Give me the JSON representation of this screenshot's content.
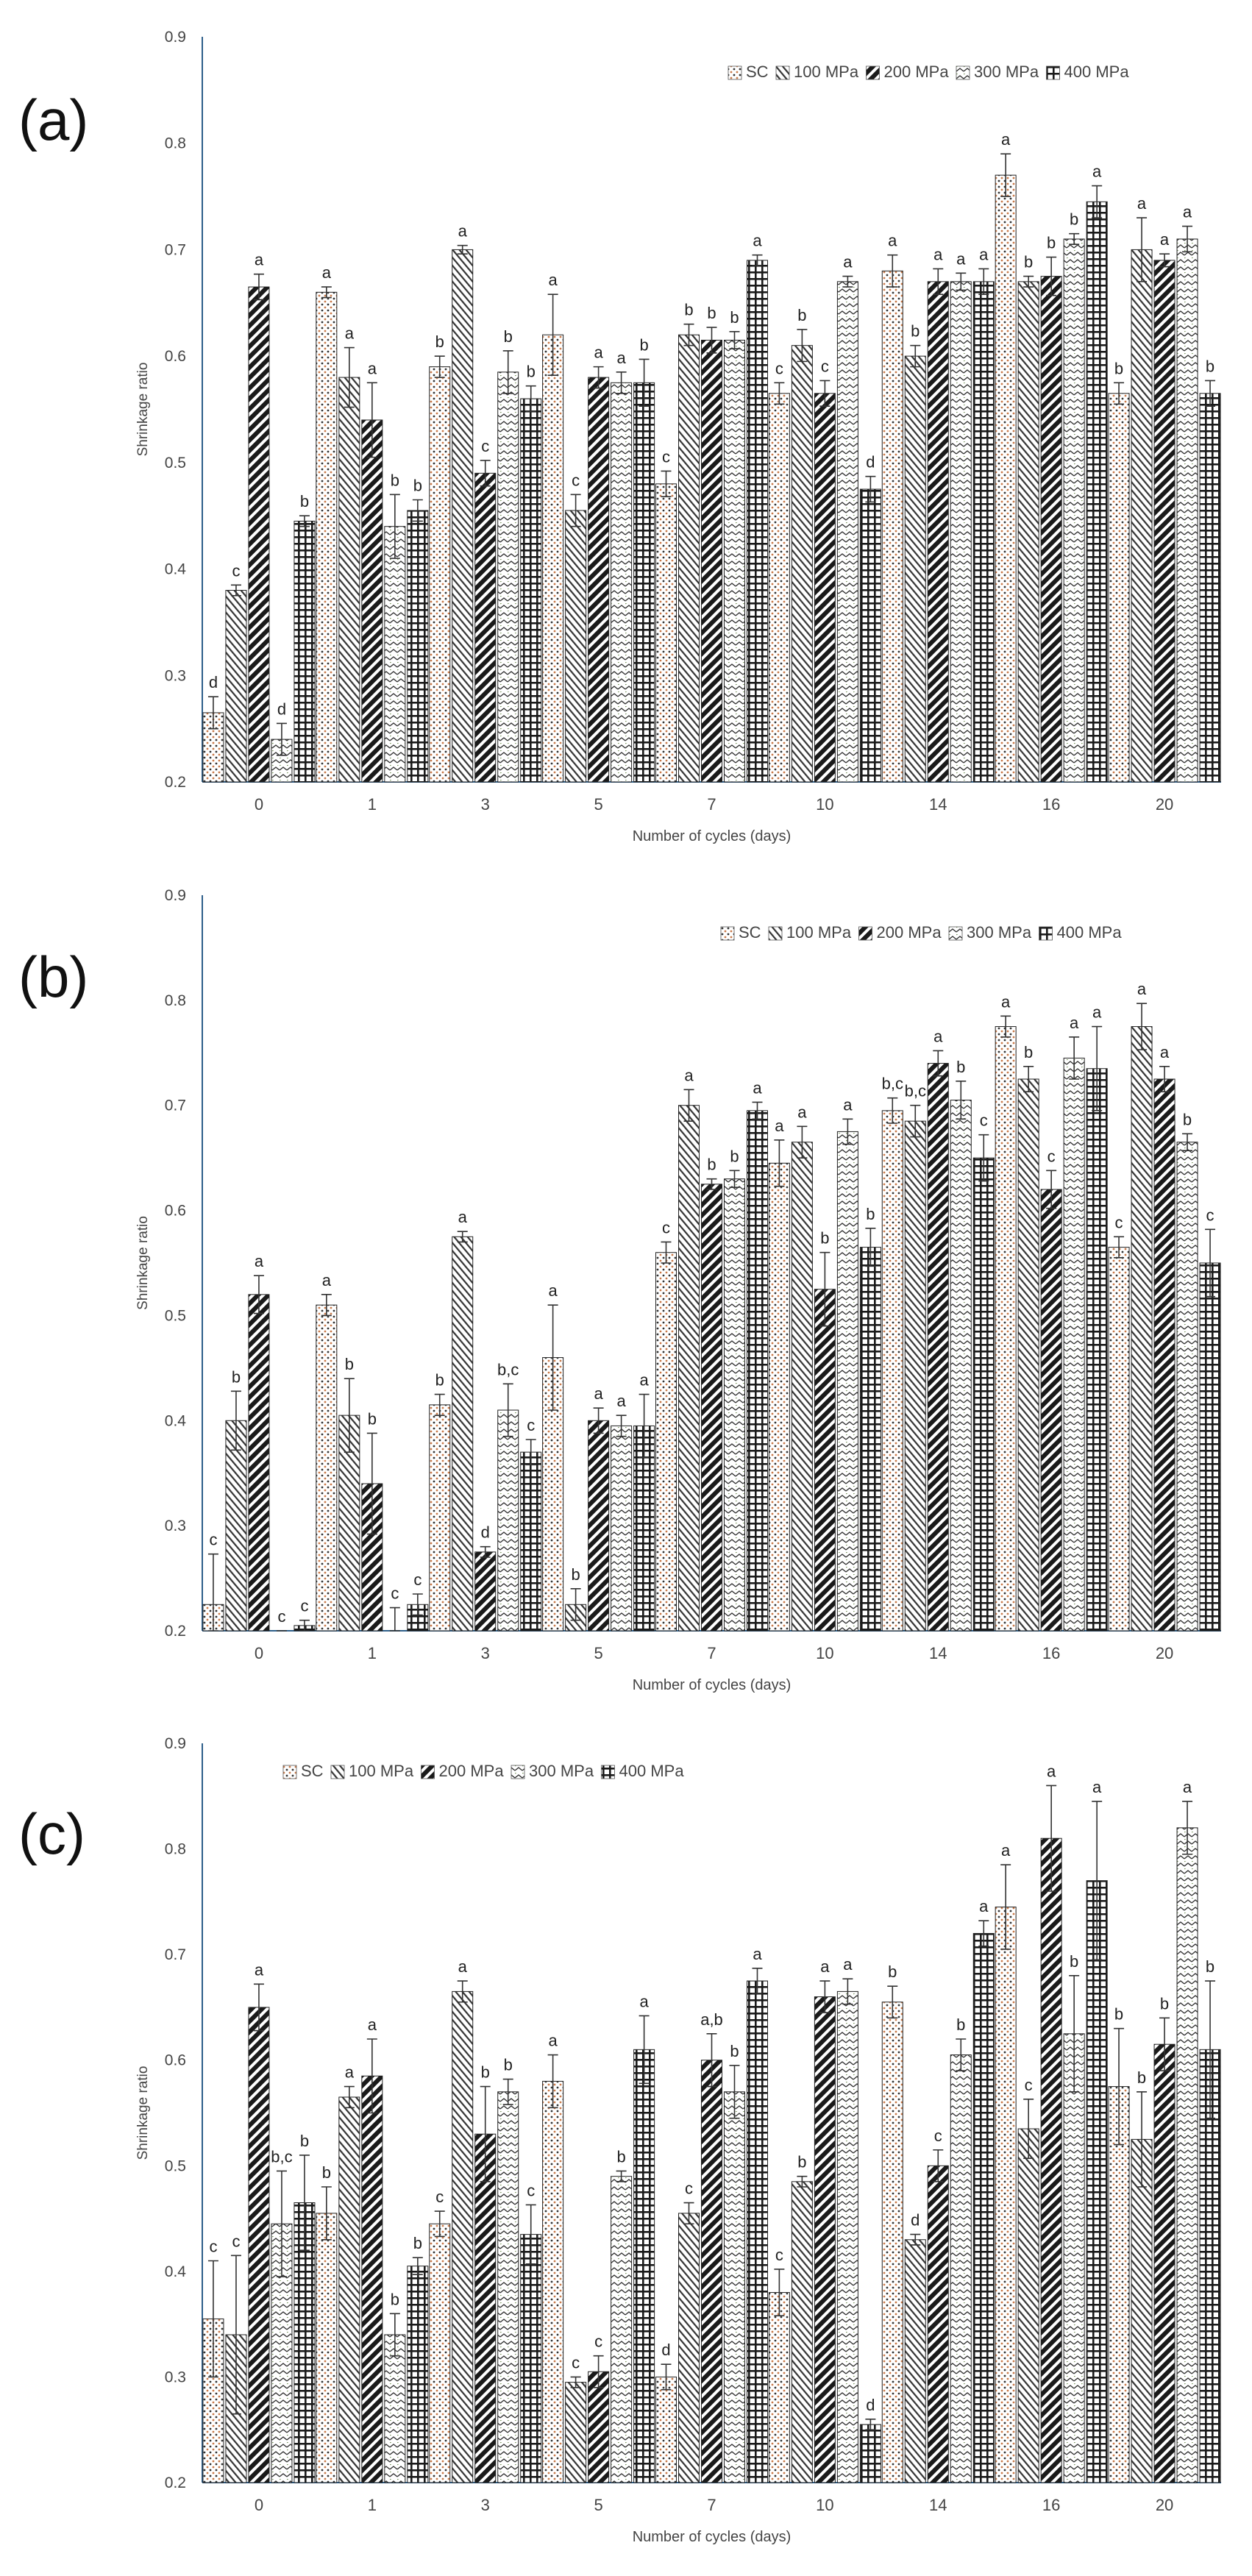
{
  "colors": {
    "axis": "#2e5f8a",
    "bar_edge": "#222222",
    "sc": "#c87a4a",
    "dark": "#1a1a1a",
    "label": "#444444"
  },
  "chart_data": [
    {
      "type": "bar",
      "panel_label": "(a)",
      "xlabel": "Number of cycles (days)",
      "ylabel": "Shrinkage ratio",
      "ylim": [
        0.2,
        0.9
      ],
      "yticks": [
        "0.2",
        "0.3",
        "0.4",
        "0.5",
        "0.6",
        "0.7",
        "0.8",
        "0.9"
      ],
      "categories": [
        "0",
        "1",
        "3",
        "5",
        "7",
        "10",
        "14",
        "16",
        "20"
      ],
      "legend_position": "top-right",
      "series": [
        {
          "name": "SC",
          "pattern": "dots",
          "values": [
            0.265,
            0.66,
            0.59,
            0.62,
            0.48,
            0.565,
            0.68,
            0.77,
            0.565
          ],
          "errors": [
            0.015,
            0.005,
            0.01,
            0.038,
            0.012,
            0.01,
            0.015,
            0.02,
            0.01
          ],
          "letters": [
            "d",
            "a",
            "b",
            "a",
            "c",
            "c",
            "a",
            "a",
            "b"
          ]
        },
        {
          "name": "100 MPa",
          "pattern": "diag",
          "values": [
            0.38,
            0.58,
            0.7,
            0.455,
            0.62,
            0.61,
            0.6,
            0.67,
            0.7
          ],
          "errors": [
            0.005,
            0.028,
            0.004,
            0.015,
            0.01,
            0.015,
            0.01,
            0.005,
            0.03
          ],
          "letters": [
            "c",
            "a",
            "a",
            "c",
            "b",
            "b",
            "b",
            "b",
            "a"
          ]
        },
        {
          "name": "200 MPa",
          "pattern": "heavy",
          "values": [
            0.665,
            0.54,
            0.49,
            0.58,
            0.615,
            0.565,
            0.67,
            0.675,
            0.69
          ],
          "errors": [
            0.012,
            0.035,
            0.012,
            0.01,
            0.012,
            0.012,
            0.012,
            0.018,
            0.006
          ],
          "letters": [
            "a",
            "a",
            "c",
            "a",
            "b",
            "c",
            "a",
            "b",
            "a"
          ]
        },
        {
          "name": "300 MPa",
          "pattern": "wave",
          "values": [
            0.24,
            0.44,
            0.585,
            0.575,
            0.615,
            0.67,
            0.67,
            0.71,
            0.71
          ],
          "errors": [
            0.015,
            0.03,
            0.02,
            0.01,
            0.008,
            0.005,
            0.008,
            0.005,
            0.012
          ],
          "letters": [
            "d",
            "b",
            "b",
            "a",
            "b",
            "a",
            "a",
            "b",
            "a"
          ]
        },
        {
          "name": "400 MPa",
          "pattern": "grid",
          "values": [
            0.445,
            0.455,
            0.56,
            0.575,
            0.69,
            0.475,
            0.67,
            0.745,
            0.565
          ],
          "errors": [
            0.005,
            0.01,
            0.012,
            0.022,
            0.005,
            0.012,
            0.012,
            0.015,
            0.012
          ],
          "letters": [
            "b",
            "b",
            "b",
            "b",
            "a",
            "d",
            "a",
            "a",
            "b"
          ]
        }
      ]
    },
    {
      "type": "bar",
      "panel_label": "(b)",
      "xlabel": "Number of cycles (days)",
      "ylabel": "Shrinkage ratio",
      "ylim": [
        0.2,
        0.9
      ],
      "yticks": [
        "0.2",
        "0.3",
        "0.4",
        "0.5",
        "0.6",
        "0.7",
        "0.8",
        "0.9"
      ],
      "categories": [
        "0",
        "1",
        "3",
        "5",
        "7",
        "10",
        "14",
        "16",
        "20"
      ],
      "legend_position": "top-right",
      "series": [
        {
          "name": "SC",
          "pattern": "dots",
          "values": [
            0.225,
            0.51,
            0.415,
            0.46,
            0.56,
            0.645,
            0.695,
            0.775,
            0.565
          ],
          "errors": [
            0.048,
            0.01,
            0.01,
            0.05,
            0.01,
            0.022,
            0.012,
            0.01,
            0.01
          ],
          "letters": [
            "c",
            "a",
            "b",
            "a",
            "c",
            "a",
            "b,c",
            "a",
            "c"
          ]
        },
        {
          "name": "100 MPa",
          "pattern": "diag",
          "values": [
            0.4,
            0.405,
            0.575,
            0.225,
            0.7,
            0.665,
            0.685,
            0.725,
            0.775
          ],
          "errors": [
            0.028,
            0.035,
            0.005,
            0.015,
            0.015,
            0.015,
            0.015,
            0.012,
            0.022
          ],
          "letters": [
            "b",
            "b",
            "a",
            "b",
            "a",
            "a",
            "b,c",
            "b",
            "a"
          ]
        },
        {
          "name": "200 MPa",
          "pattern": "heavy",
          "values": [
            0.52,
            0.34,
            0.275,
            0.4,
            0.625,
            0.525,
            0.74,
            0.62,
            0.725
          ],
          "errors": [
            0.018,
            0.048,
            0.005,
            0.012,
            0.005,
            0.035,
            0.012,
            0.018,
            0.012
          ],
          "letters": [
            "a",
            "b",
            "d",
            "a",
            "b",
            "b",
            "a",
            "c",
            "a"
          ]
        },
        {
          "name": "300 MPa",
          "pattern": "wave",
          "values": [
            0.19,
            0.2,
            0.41,
            0.395,
            0.63,
            0.675,
            0.705,
            0.745,
            0.665
          ],
          "errors": [
            0.01,
            0.022,
            0.025,
            0.01,
            0.008,
            0.012,
            0.018,
            0.02,
            0.008
          ],
          "letters": [
            "c",
            "c",
            "b,c",
            "a",
            "b",
            "a",
            "b",
            "a",
            "b"
          ]
        },
        {
          "name": "400 MPa",
          "pattern": "grid",
          "values": [
            0.205,
            0.225,
            0.37,
            0.395,
            0.695,
            0.565,
            0.65,
            0.735,
            0.55
          ],
          "errors": [
            0.005,
            0.01,
            0.012,
            0.03,
            0.008,
            0.018,
            0.022,
            0.04,
            0.032
          ],
          "letters": [
            "c",
            "c",
            "c",
            "a",
            "a",
            "b",
            "c",
            "a",
            "c"
          ]
        }
      ]
    },
    {
      "type": "bar",
      "panel_label": "(c)",
      "xlabel": "Number of cycles (days)",
      "ylabel": "Shrinkage ratio",
      "ylim": [
        0.2,
        0.9
      ],
      "yticks": [
        "0.2",
        "0.3",
        "0.4",
        "0.5",
        "0.6",
        "0.7",
        "0.8",
        "0.9"
      ],
      "categories": [
        "0",
        "1",
        "3",
        "5",
        "7",
        "10",
        "14",
        "16",
        "20"
      ],
      "legend_position": "top-left",
      "series": [
        {
          "name": "SC",
          "pattern": "dots",
          "values": [
            0.355,
            0.455,
            0.445,
            0.58,
            0.3,
            0.38,
            0.655,
            0.745,
            0.575
          ],
          "errors": [
            0.055,
            0.025,
            0.012,
            0.025,
            0.012,
            0.022,
            0.015,
            0.04,
            0.055
          ],
          "letters": [
            "c",
            "b",
            "c",
            "a",
            "d",
            "c",
            "b",
            "a",
            "b"
          ]
        },
        {
          "name": "100 MPa",
          "pattern": "diag",
          "values": [
            0.34,
            0.565,
            0.665,
            0.295,
            0.455,
            0.485,
            0.43,
            0.535,
            0.525
          ],
          "errors": [
            0.075,
            0.01,
            0.01,
            0.005,
            0.01,
            0.005,
            0.005,
            0.028,
            0.045
          ],
          "letters": [
            "c",
            "a",
            "a",
            "c",
            "c",
            "b",
            "d",
            "c",
            "b"
          ]
        },
        {
          "name": "200 MPa",
          "pattern": "heavy",
          "values": [
            0.65,
            0.585,
            0.53,
            0.305,
            0.6,
            0.66,
            0.5,
            0.81,
            0.615
          ],
          "errors": [
            0.022,
            0.035,
            0.045,
            0.015,
            0.025,
            0.015,
            0.015,
            0.05,
            0.025
          ],
          "letters": [
            "a",
            "a",
            "b",
            "c",
            "a,b",
            "a",
            "c",
            "a",
            "b"
          ]
        },
        {
          "name": "300 MPa",
          "pattern": "wave",
          "values": [
            0.445,
            0.34,
            0.57,
            0.49,
            0.57,
            0.665,
            0.605,
            0.625,
            0.82
          ],
          "errors": [
            0.05,
            0.02,
            0.012,
            0.005,
            0.025,
            0.012,
            0.015,
            0.055,
            0.025
          ],
          "letters": [
            "b,c",
            "b",
            "b",
            "b",
            "b",
            "a",
            "b",
            "b",
            "a"
          ]
        },
        {
          "name": "400 MPa",
          "pattern": "grid",
          "values": [
            0.465,
            0.405,
            0.435,
            0.61,
            0.675,
            0.255,
            0.72,
            0.77,
            0.61
          ],
          "errors": [
            0.045,
            0.008,
            0.028,
            0.032,
            0.012,
            0.005,
            0.012,
            0.075,
            0.065
          ],
          "letters": [
            "b",
            "b",
            "c",
            "a",
            "a",
            "d",
            "a",
            "a",
            "b"
          ]
        }
      ]
    }
  ]
}
